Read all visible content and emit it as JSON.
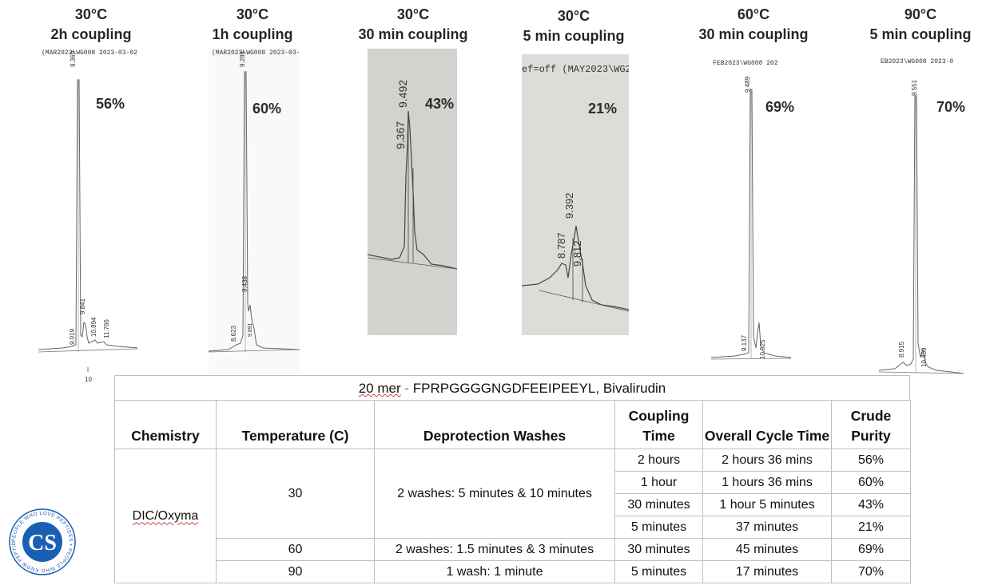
{
  "panels": [
    {
      "id": "p1",
      "title_temp": "30°C",
      "title_time": "2h coupling",
      "header": "(MAR2023\\WG008 2023-03-02 1",
      "purity": "56%",
      "x_tick": "10",
      "peaks": [
        {
          "label": "9.369"
        },
        {
          "label": "9.841"
        },
        {
          "label": "9.019"
        },
        {
          "label": "10.894"
        },
        {
          "label": "11.766"
        }
      ]
    },
    {
      "id": "p2",
      "title_temp": "30°C",
      "title_time": "1h coupling",
      "header": "(MAR2023\\WG008 2023-03-",
      "purity": "60%",
      "peaks": [
        {
          "label": "9.284"
        },
        {
          "label": "9.438"
        },
        {
          "label": "8.623"
        },
        {
          "label": "9.891"
        }
      ]
    },
    {
      "id": "p3",
      "title_temp": "30°C",
      "title_time": "30 min coupling",
      "header": "",
      "purity": "43%",
      "peaks": [
        {
          "label": "9.492"
        },
        {
          "label": "9.367"
        }
      ]
    },
    {
      "id": "p4",
      "title_temp": "30°C",
      "title_time": "5 min coupling",
      "header": "ef=off (MAY2023\\WG202",
      "purity": "21%",
      "peaks": [
        {
          "label": "9.392"
        },
        {
          "label": "8.787"
        },
        {
          "label": "9.812"
        }
      ]
    },
    {
      "id": "p5",
      "title_temp": "60°C",
      "title_time": "30 min coupling",
      "header": "FEB2023\\WG008 202",
      "purity": "69%",
      "peaks": [
        {
          "label": "9.489"
        },
        {
          "label": "9.137"
        },
        {
          "label": "10.525"
        }
      ]
    },
    {
      "id": "p6",
      "title_temp": "90°C",
      "title_time": "5 min coupling",
      "header": "EB2023\\WG008 2023-0",
      "purity": "70%",
      "peaks": [
        {
          "label": "9.551"
        },
        {
          "label": "8.915"
        },
        {
          "label": "10.459"
        }
      ]
    }
  ],
  "chart_data": {
    "type": "table",
    "title_mer": "20 mer",
    "title_dash": "-",
    "title_rest": "FPRPGGGGNGDFEEIPEEYL, Bivalirudin",
    "columns": [
      "Chemistry",
      "Temperature (C)",
      "Deprotection Washes",
      "Coupling Time",
      "Overall Cycle Time",
      "Crude Purity"
    ],
    "chemistry": "DIC/Oxyma",
    "groups": [
      {
        "temperature": "30",
        "washes": "2 washes: 5 minutes & 10 minutes",
        "rows": [
          {
            "coupling": "2 hours",
            "cycle": "2 hours 36 mins",
            "purity": "56%"
          },
          {
            "coupling": "1 hour",
            "cycle": "1 hours 36 mins",
            "purity": "60%"
          },
          {
            "coupling": "30 minutes",
            "cycle": "1 hour 5 minutes",
            "purity": "43%"
          },
          {
            "coupling": "5 minutes",
            "cycle": "37 minutes",
            "purity": "21%"
          }
        ]
      },
      {
        "temperature": "60",
        "washes": "2 washes: 1.5 minutes & 3 minutes",
        "rows": [
          {
            "coupling": "30 minutes",
            "cycle": "45 minutes",
            "purity": "69%"
          }
        ]
      },
      {
        "temperature": "90",
        "washes": "1 wash: 1 minute",
        "rows": [
          {
            "coupling": "5 minutes",
            "cycle": "17 minutes",
            "purity": "70%"
          }
        ]
      }
    ]
  },
  "logo": {
    "text": "CS",
    "ring_text": "PEOPLE WHO LOVE PEPTIDES • PEOPLE WHO KNOW PEPTIDES",
    "color": "#1a5fb4",
    "accent": "#d03030"
  }
}
